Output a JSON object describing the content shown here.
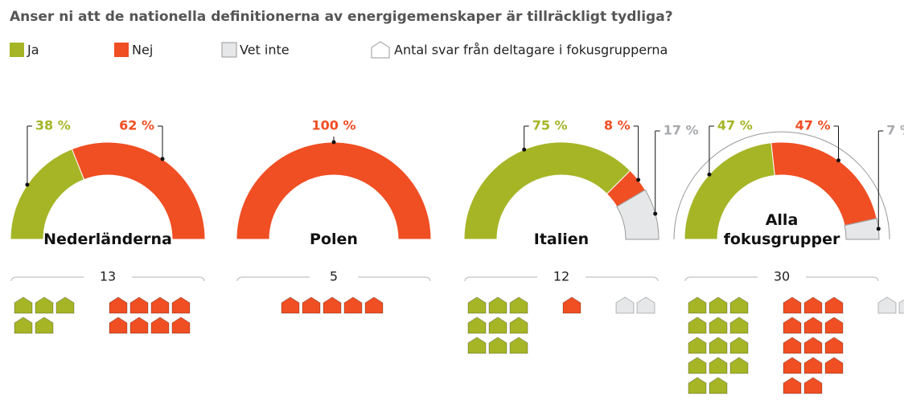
{
  "title": "Anser ni att de nationella definitionerna av energigemenskaper är tillräckligt tydliga?",
  "legend": {
    "categories": [
      "Ja",
      "Nej",
      "Vet inte"
    ],
    "colors": [
      "#a5b526",
      "#f04e23",
      "#e6e7e8"
    ],
    "count_label": "Antal svar från deltagare i fokusgrupperna"
  },
  "chart_data": [
    {
      "type": "pie",
      "title": "Nederländerna",
      "values": [
        38,
        62
      ],
      "value_labels": [
        "38 %",
        "62 %"
      ],
      "colors": [
        "#a5b526",
        "#f04e23"
      ],
      "label_colors": [
        "#a5b526",
        "#f04e23"
      ],
      "counts": [
        5,
        8
      ],
      "total": 13
    },
    {
      "type": "pie",
      "title": "Polen",
      "values": [
        100
      ],
      "value_labels": [
        "100 %"
      ],
      "colors": [
        "#f04e23"
      ],
      "label_colors": [
        "#f04e23"
      ],
      "counts": [
        5
      ],
      "total": 5
    },
    {
      "type": "pie",
      "title": "Italien",
      "values": [
        75,
        8,
        17
      ],
      "value_labels": [
        "75 %",
        "8 %",
        "17 %"
      ],
      "colors": [
        "#a5b526",
        "#f04e23",
        "#e6e7e8"
      ],
      "label_colors": [
        "#a5b526",
        "#f04e23",
        "#a7a9ac"
      ],
      "counts": [
        9,
        1,
        2
      ],
      "total": 12
    },
    {
      "type": "pie",
      "title": "Alla fokusgrupper",
      "values": [
        47,
        47,
        7
      ],
      "value_labels": [
        "47 %",
        "47 %",
        "7 %"
      ],
      "colors": [
        "#a5b526",
        "#f04e23",
        "#e6e7e8"
      ],
      "label_colors": [
        "#a5b526",
        "#f04e23",
        "#a7a9ac"
      ],
      "counts": [
        14,
        14,
        2
      ],
      "total": 30
    }
  ]
}
